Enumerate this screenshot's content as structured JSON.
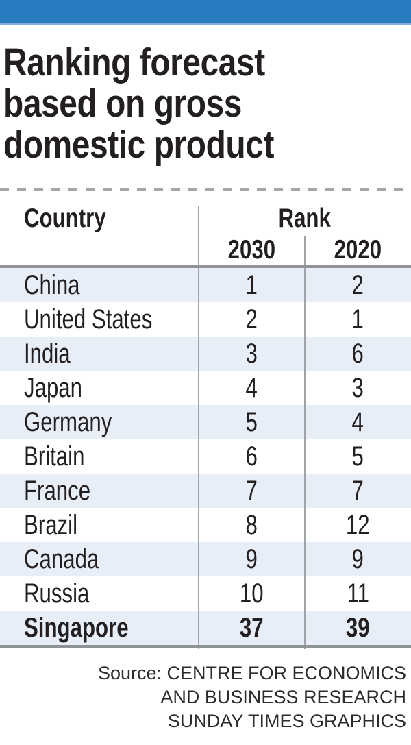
{
  "header": {
    "title_lines": [
      "Ranking forecast",
      "based on gross",
      "domestic product"
    ]
  },
  "table": {
    "country_header": "Country",
    "rank_header": "Rank",
    "year_headers": [
      "2030",
      "2020"
    ],
    "rows": [
      {
        "country": "China",
        "rank_2030": "1",
        "rank_2020": "2",
        "emphasis": false
      },
      {
        "country": "United States",
        "rank_2030": "2",
        "rank_2020": "1",
        "emphasis": false
      },
      {
        "country": "India",
        "rank_2030": "3",
        "rank_2020": "6",
        "emphasis": false
      },
      {
        "country": "Japan",
        "rank_2030": "4",
        "rank_2020": "3",
        "emphasis": false
      },
      {
        "country": "Germany",
        "rank_2030": "5",
        "rank_2020": "4",
        "emphasis": false
      },
      {
        "country": "Britain",
        "rank_2030": "6",
        "rank_2020": "5",
        "emphasis": false
      },
      {
        "country": "France",
        "rank_2030": "7",
        "rank_2020": "7",
        "emphasis": false
      },
      {
        "country": "Brazil",
        "rank_2030": "8",
        "rank_2020": "12",
        "emphasis": false
      },
      {
        "country": "Canada",
        "rank_2030": "9",
        "rank_2020": "9",
        "emphasis": false
      },
      {
        "country": "Russia",
        "rank_2030": "10",
        "rank_2020": "11",
        "emphasis": false
      },
      {
        "country": "Singapore",
        "rank_2030": "37",
        "rank_2020": "39",
        "emphasis": true
      }
    ]
  },
  "footer": {
    "source_lines": [
      "Source: CENTRE FOR ECONOMICS",
      "AND BUSINESS RESEARCH",
      "SUNDAY TIMES GRAPHICS"
    ]
  },
  "colors": {
    "accent_bar": "#2a7cc0",
    "accent_bar_edge": "#7fafd9",
    "row_stripe": "#e8eef7",
    "rule_heavy": "#8f9396",
    "rule_light": "#a0a4a8",
    "dashed_divider": "#a6a6a6",
    "text": "#231f20"
  },
  "chart_data": {
    "type": "table",
    "title": "Ranking forecast based on gross domestic product",
    "columns": [
      "Country",
      "Rank 2030",
      "Rank 2020"
    ],
    "rows": [
      [
        "China",
        1,
        2
      ],
      [
        "United States",
        2,
        1
      ],
      [
        "India",
        3,
        6
      ],
      [
        "Japan",
        4,
        3
      ],
      [
        "Germany",
        5,
        4
      ],
      [
        "Britain",
        6,
        5
      ],
      [
        "France",
        7,
        7
      ],
      [
        "Brazil",
        8,
        12
      ],
      [
        "Canada",
        9,
        9
      ],
      [
        "Russia",
        10,
        11
      ],
      [
        "Singapore",
        37,
        39
      ]
    ],
    "highlighted_row": "Singapore",
    "source": "Source: CENTRE FOR ECONOMICS AND BUSINESS RESEARCH",
    "credit": "SUNDAY TIMES GRAPHICS"
  }
}
